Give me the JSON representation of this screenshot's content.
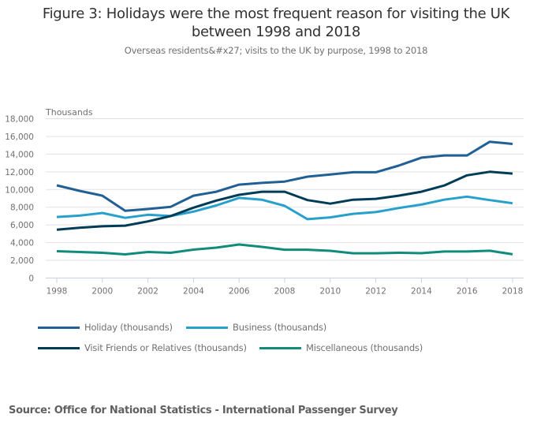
{
  "header": {
    "title_line1": "Figure 3: Holidays were the most frequent reason for visiting the UK",
    "title_line2": "between 1998 and 2018",
    "subtitle": "Overseas residents&#x27; visits to the UK by purpose, 1998 to 2018"
  },
  "footer": {
    "source": "Source: Office for National Statistics - International Passenger Survey"
  },
  "chart_data": {
    "type": "line",
    "title": "Figure 3: Holidays were the most frequent reason for visiting the UK between 1998 and 2018",
    "subtitle": "Overseas residents&#x27; visits to the UK by purpose, 1998 to 2018",
    "xlabel": "",
    "ylabel": "Thousands",
    "ylim": [
      0,
      18000
    ],
    "xlim": [
      1998,
      2018
    ],
    "grid": true,
    "legend_position": "bottom",
    "y_ticks": [
      0,
      2000,
      4000,
      6000,
      8000,
      10000,
      12000,
      14000,
      16000,
      18000
    ],
    "y_tick_labels": [
      "0",
      "2,000",
      "4,000",
      "6,000",
      "8,000",
      "10,000",
      "12,000",
      "14,000",
      "16,000",
      "18,000"
    ],
    "x_ticks": [
      1998,
      2000,
      2002,
      2004,
      2006,
      2008,
      2010,
      2012,
      2014,
      2016,
      2018
    ],
    "x_tick_labels": [
      "1998",
      "2000",
      "2002",
      "2004",
      "2006",
      "2008",
      "2010",
      "2012",
      "2014",
      "2016",
      "2018"
    ],
    "x": [
      1998,
      1999,
      2000,
      2001,
      2002,
      2003,
      2004,
      2005,
      2006,
      2007,
      2008,
      2009,
      2010,
      2011,
      2012,
      2013,
      2014,
      2015,
      2016,
      2017,
      2018
    ],
    "series": [
      {
        "name": "Holiday (thousands)",
        "color": "#206095",
        "values": [
          10470,
          9850,
          9300,
          7600,
          7800,
          8050,
          9300,
          9750,
          10550,
          10750,
          10900,
          11450,
          11700,
          11950,
          11950,
          12700,
          13600,
          13850,
          13850,
          15400,
          15150
        ]
      },
      {
        "name": "Business (thousands)",
        "color": "#27a0cc",
        "values": [
          6900,
          7050,
          7350,
          6800,
          7150,
          7000,
          7500,
          8200,
          9050,
          8850,
          8150,
          6650,
          6850,
          7250,
          7450,
          7900,
          8300,
          8850,
          9200,
          8800,
          8450
        ]
      },
      {
        "name": "Visit Friends or Relatives (thousands)",
        "color": "#003c57",
        "values": [
          5450,
          5680,
          5850,
          5920,
          6400,
          7000,
          7950,
          8750,
          9400,
          9750,
          9750,
          8800,
          8400,
          8850,
          8950,
          9300,
          9750,
          10450,
          11600,
          12000,
          11800
        ]
      },
      {
        "name": "Miscellaneous (thousands)",
        "color": "#118c7b",
        "values": [
          3030,
          2940,
          2850,
          2670,
          2940,
          2850,
          3210,
          3430,
          3790,
          3520,
          3200,
          3200,
          3070,
          2800,
          2800,
          2850,
          2810,
          2990,
          2990,
          3080,
          2680
        ]
      }
    ]
  }
}
